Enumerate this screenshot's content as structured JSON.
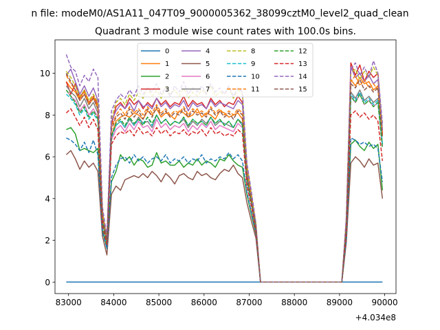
{
  "figure": {
    "suptitle": "n file: modeM0/AS1A11_047T09_9000005362_38099cztM0_level2_quad_clean",
    "offset_text": "+4.034e8"
  },
  "chart_data": {
    "type": "line",
    "title": "Quadrant 3 module wise count rates with 100.0s bins.",
    "xlabel": "",
    "ylabel": "",
    "xlim": [
      82700,
      90250
    ],
    "ylim": [
      -0.55,
      11.6
    ],
    "x_offset": 403400000,
    "x_ticks": [
      83000,
      84000,
      85000,
      86000,
      87000,
      88000,
      89000,
      90000
    ],
    "y_ticks": [
      0,
      2,
      4,
      6,
      8,
      10
    ],
    "grid": false,
    "legend_position": "upper center, 4 columns",
    "x": [
      82950,
      83050,
      83150,
      83250,
      83350,
      83450,
      83550,
      83650,
      83750,
      83850,
      83950,
      84050,
      84150,
      84250,
      84350,
      84450,
      84550,
      84650,
      84750,
      84850,
      84950,
      85050,
      85150,
      85250,
      85350,
      85450,
      85550,
      85650,
      85750,
      85850,
      85950,
      86050,
      86150,
      86250,
      86350,
      86450,
      86550,
      86650,
      86750,
      86850,
      86950,
      87050,
      87150,
      87250,
      87350,
      87450,
      87550,
      87650,
      87750,
      87850,
      87950,
      88050,
      88150,
      88250,
      88350,
      88450,
      88550,
      88650,
      88750,
      88850,
      88950,
      89050,
      89150,
      89250,
      89350,
      89450,
      89550,
      89650,
      89750,
      89850,
      89950
    ],
    "series": [
      {
        "name": "0",
        "color": "#1f77b4",
        "dash": false,
        "values": [
          0,
          0,
          0,
          0,
          0,
          0,
          0,
          0,
          0,
          0,
          0,
          0,
          0,
          0,
          0,
          0,
          0,
          0,
          0,
          0,
          0,
          0,
          0,
          0,
          0,
          0,
          0,
          0,
          0,
          0,
          0,
          0,
          0,
          0,
          0,
          0,
          0,
          0,
          0,
          0,
          0,
          0,
          0,
          0,
          0,
          0,
          0,
          0,
          0,
          0,
          0,
          0,
          0,
          0,
          0,
          0,
          0,
          0,
          0,
          0,
          0,
          0,
          0,
          0,
          0,
          0,
          0,
          0,
          0,
          0,
          0
        ]
      },
      {
        "name": "1",
        "color": "#ff7f0e",
        "dash": false,
        "values": [
          9.6,
          9.3,
          9.1,
          8.7,
          9.0,
          8.5,
          8.8,
          8.3,
          3.0,
          2.0,
          7.0,
          7.7,
          7.9,
          8.0,
          7.9,
          8.1,
          8.0,
          7.8,
          8.2,
          8.0,
          8.3,
          7.9,
          8.1,
          8.0,
          7.8,
          8.2,
          8.1,
          7.9,
          8.0,
          8.3,
          7.9,
          8.1,
          8.0,
          7.8,
          8.2,
          8.1,
          7.9,
          8.0,
          8.1,
          7.8,
          5.0,
          3.8,
          2.5,
          0,
          0,
          0,
          0,
          0,
          0,
          0,
          0,
          0,
          0,
          0,
          0,
          0,
          0,
          0,
          0,
          0,
          0,
          0,
          2.5,
          9.7,
          9.4,
          9.8,
          9.5,
          9.6,
          9.2,
          9.4,
          7.0
        ]
      },
      {
        "name": "2",
        "color": "#2ca02c",
        "dash": false,
        "values": [
          7.3,
          7.4,
          7.1,
          6.3,
          6.4,
          6.3,
          6.2,
          6.4,
          2.5,
          1.6,
          4.8,
          5.3,
          6.1,
          5.8,
          6.0,
          5.6,
          5.9,
          5.8,
          5.5,
          5.6,
          6.2,
          5.7,
          5.8,
          5.6,
          5.6,
          5.8,
          5.5,
          5.7,
          5.6,
          5.9,
          5.6,
          5.8,
          5.7,
          5.5,
          5.9,
          5.8,
          6.1,
          5.8,
          5.6,
          5.5,
          4.2,
          3.2,
          2.3,
          0,
          0,
          0,
          0,
          0,
          0,
          0,
          0,
          0,
          0,
          0,
          0,
          0,
          0,
          0,
          0,
          0,
          0,
          0,
          2.0,
          6.6,
          6.8,
          6.5,
          6.3,
          6.7,
          6.4,
          6.6,
          4.4
        ]
      },
      {
        "name": "3",
        "color": "#d62728",
        "dash": false,
        "values": [
          9.6,
          9.0,
          9.5,
          8.8,
          9.2,
          8.6,
          8.9,
          8.5,
          3.4,
          1.9,
          7.5,
          8.4,
          8.6,
          8.3,
          8.8,
          8.5,
          8.7,
          8.3,
          8.6,
          8.4,
          8.8,
          8.5,
          8.7,
          8.4,
          8.6,
          8.5,
          8.9,
          8.4,
          8.7,
          8.5,
          8.6,
          8.3,
          8.8,
          8.5,
          8.7,
          8.4,
          8.6,
          8.5,
          8.9,
          8.6,
          5.3,
          4.1,
          2.7,
          0,
          0,
          0,
          0,
          0,
          0,
          0,
          0,
          0,
          0,
          0,
          0,
          0,
          0,
          0,
          0,
          0,
          0,
          0,
          2.9,
          10.5,
          9.9,
          10.4,
          9.6,
          10.1,
          9.8,
          10.0,
          7.1
        ]
      },
      {
        "name": "4",
        "color": "#9467bd",
        "dash": false,
        "values": [
          9.9,
          10.2,
          9.6,
          9.0,
          9.4,
          8.9,
          9.3,
          8.7,
          3.3,
          2.1,
          7.7,
          8.2,
          8.5,
          8.3,
          8.6,
          8.2,
          8.7,
          8.4,
          8.5,
          8.3,
          8.8,
          8.4,
          8.6,
          8.3,
          8.5,
          8.4,
          8.7,
          8.2,
          8.6,
          8.4,
          8.5,
          8.3,
          8.7,
          8.4,
          8.6,
          8.5,
          8.4,
          8.3,
          8.7,
          8.5,
          5.2,
          4.0,
          2.6,
          0,
          0,
          0,
          0,
          0,
          0,
          0,
          0,
          0,
          0,
          0,
          0,
          0,
          0,
          0,
          0,
          0,
          0,
          0,
          2.8,
          10.3,
          9.8,
          10.0,
          9.6,
          9.9,
          9.5,
          9.7,
          7.3
        ]
      },
      {
        "name": "5",
        "color": "#8c564b",
        "dash": false,
        "values": [
          6.1,
          6.3,
          5.9,
          5.4,
          5.8,
          5.5,
          5.7,
          5.3,
          2.2,
          1.3,
          4.2,
          4.6,
          4.4,
          4.9,
          5.0,
          5.1,
          5.0,
          5.2,
          5.0,
          5.3,
          5.1,
          4.8,
          5.2,
          5.0,
          4.7,
          5.1,
          5.2,
          5.0,
          4.9,
          5.3,
          5.1,
          5.2,
          5.0,
          4.9,
          5.2,
          5.4,
          5.3,
          5.6,
          5.2,
          5.0,
          3.8,
          2.9,
          2.1,
          0,
          0,
          0,
          0,
          0,
          0,
          0,
          0,
          0,
          0,
          0,
          0,
          0,
          0,
          0,
          0,
          0,
          0,
          0,
          1.9,
          5.7,
          6.0,
          5.8,
          5.5,
          5.9,
          5.6,
          5.7,
          4.0
        ]
      },
      {
        "name": "6",
        "color": "#e377c2",
        "dash": false,
        "values": [
          9.2,
          8.9,
          8.7,
          8.2,
          8.5,
          8.0,
          8.3,
          7.9,
          2.9,
          1.9,
          6.8,
          7.3,
          7.5,
          7.2,
          7.6,
          7.3,
          7.7,
          7.4,
          7.5,
          7.2,
          7.8,
          7.4,
          7.6,
          7.3,
          7.5,
          7.4,
          7.6,
          7.2,
          7.5,
          7.3,
          7.6,
          7.4,
          7.7,
          7.3,
          7.5,
          7.4,
          7.3,
          7.2,
          7.6,
          7.4,
          4.8,
          3.7,
          2.4,
          0,
          0,
          0,
          0,
          0,
          0,
          0,
          0,
          0,
          0,
          0,
          0,
          0,
          0,
          0,
          0,
          0,
          0,
          0,
          2.4,
          8.9,
          8.6,
          9.0,
          8.5,
          8.7,
          8.4,
          8.6,
          6.5
        ]
      },
      {
        "name": "7",
        "color": "#7f7f7f",
        "dash": false,
        "values": [
          9.4,
          9.1,
          8.9,
          8.4,
          8.8,
          8.3,
          8.6,
          8.1,
          3.0,
          2.0,
          7.0,
          7.5,
          7.7,
          7.4,
          7.8,
          7.5,
          7.9,
          7.6,
          7.7,
          7.4,
          8.0,
          7.6,
          7.8,
          7.5,
          7.7,
          7.6,
          7.8,
          7.4,
          7.7,
          7.5,
          7.8,
          7.6,
          7.9,
          7.5,
          7.7,
          7.6,
          7.5,
          7.4,
          7.8,
          7.6,
          4.9,
          3.8,
          2.5,
          0,
          0,
          0,
          0,
          0,
          0,
          0,
          0,
          0,
          0,
          0,
          0,
          0,
          0,
          0,
          0,
          0,
          0,
          0,
          2.5,
          9.1,
          8.8,
          9.2,
          8.7,
          8.9,
          8.6,
          8.8,
          6.6
        ]
      },
      {
        "name": "8",
        "color": "#bcbd22",
        "dash": true,
        "values": [
          10.1,
          9.8,
          9.4,
          8.9,
          9.2,
          8.7,
          9.0,
          8.6,
          3.4,
          2.1,
          7.8,
          8.6,
          8.8,
          8.5,
          9.0,
          8.7,
          9.1,
          8.8,
          9.3,
          8.9,
          9.2,
          8.8,
          9.4,
          9.0,
          9.2,
          8.9,
          9.3,
          8.8,
          9.1,
          8.9,
          9.2,
          9.0,
          9.4,
          8.9,
          9.1,
          9.0,
          9.3,
          8.8,
          9.2,
          9.0,
          5.6,
          4.2,
          2.8,
          0,
          0,
          0,
          0,
          0,
          0,
          0,
          0,
          0,
          0,
          0,
          0,
          0,
          0,
          0,
          0,
          0,
          0,
          0,
          3.0,
          10.0,
          10.2,
          9.7,
          10.1,
          9.8,
          10.3,
          9.9,
          7.5
        ]
      },
      {
        "name": "9",
        "color": "#17becf",
        "dash": true,
        "values": [
          9.0,
          8.8,
          8.5,
          8.0,
          8.3,
          7.8,
          8.1,
          7.7,
          2.9,
          1.8,
          6.9,
          7.5,
          7.7,
          7.4,
          7.9,
          7.5,
          7.8,
          7.6,
          7.9,
          7.5,
          8.0,
          7.6,
          7.8,
          7.5,
          7.7,
          7.6,
          7.9,
          7.5,
          7.8,
          7.6,
          7.7,
          7.5,
          7.9,
          7.6,
          7.8,
          7.5,
          7.7,
          7.4,
          7.8,
          7.5,
          4.9,
          3.8,
          2.5,
          0,
          0,
          0,
          0,
          0,
          0,
          0,
          0,
          0,
          0,
          0,
          0,
          0,
          0,
          0,
          0,
          0,
          0,
          0,
          2.6,
          9.0,
          8.7,
          9.1,
          8.6,
          8.8,
          8.5,
          8.7,
          6.6
        ]
      },
      {
        "name": "10",
        "color": "#1f77b4",
        "dash": true,
        "values": [
          6.9,
          6.8,
          6.6,
          6.3,
          6.7,
          6.2,
          6.8,
          6.1,
          2.4,
          1.6,
          5.0,
          5.6,
          5.9,
          6.0,
          5.7,
          6.1,
          5.8,
          6.0,
          5.7,
          5.9,
          6.0,
          5.8,
          6.1,
          5.7,
          5.9,
          5.8,
          6.0,
          5.7,
          5.9,
          5.8,
          6.1,
          5.7,
          5.9,
          5.8,
          6.0,
          5.9,
          6.2,
          5.9,
          6.1,
          5.8,
          4.3,
          3.3,
          2.3,
          0,
          0,
          0,
          0,
          0,
          0,
          0,
          0,
          0,
          0,
          0,
          0,
          0,
          0,
          0,
          0,
          0,
          0,
          0,
          2.1,
          6.9,
          6.8,
          6.6,
          6.7,
          6.5,
          6.6,
          6.4,
          4.8
        ]
      },
      {
        "name": "11",
        "color": "#ff7f0e",
        "dash": true,
        "values": [
          9.9,
          9.5,
          9.2,
          8.8,
          9.1,
          8.6,
          8.9,
          8.4,
          3.2,
          2.0,
          7.4,
          8.0,
          8.3,
          8.0,
          8.4,
          8.1,
          8.3,
          8.0,
          8.4,
          8.1,
          8.5,
          8.1,
          8.3,
          8.0,
          8.2,
          8.1,
          8.4,
          8.0,
          8.3,
          8.1,
          8.2,
          8.0,
          8.4,
          8.1,
          8.3,
          8.0,
          8.2,
          8.0,
          8.3,
          8.1,
          5.2,
          4.0,
          2.6,
          0,
          0,
          0,
          0,
          0,
          0,
          0,
          0,
          0,
          0,
          0,
          0,
          0,
          0,
          0,
          0,
          0,
          0,
          0,
          2.8,
          9.6,
          9.9,
          9.4,
          9.7,
          9.3,
          9.5,
          9.2,
          7.0
        ]
      },
      {
        "name": "12",
        "color": "#2ca02c",
        "dash": true,
        "values": [
          9.2,
          8.9,
          8.6,
          8.1,
          8.4,
          7.9,
          8.2,
          7.8,
          2.9,
          1.9,
          7.0,
          7.6,
          7.8,
          7.5,
          7.9,
          7.6,
          7.8,
          7.5,
          7.9,
          7.6,
          8.0,
          7.6,
          7.8,
          7.5,
          7.7,
          7.6,
          7.9,
          7.5,
          7.8,
          7.6,
          7.7,
          7.5,
          7.9,
          7.6,
          7.8,
          7.5,
          7.7,
          7.4,
          7.8,
          7.5,
          4.9,
          3.8,
          2.5,
          0,
          0,
          0,
          0,
          0,
          0,
          0,
          0,
          0,
          0,
          0,
          0,
          0,
          0,
          0,
          0,
          0,
          0,
          0,
          2.5,
          8.9,
          8.6,
          9.0,
          8.5,
          8.7,
          8.4,
          8.6,
          6.4
        ]
      },
      {
        "name": "13",
        "color": "#d62728",
        "dash": true,
        "values": [
          8.1,
          8.3,
          7.9,
          7.5,
          7.9,
          7.4,
          7.8,
          7.3,
          2.7,
          1.8,
          6.6,
          7.0,
          7.2,
          7.1,
          7.3,
          7.0,
          7.4,
          7.1,
          7.2,
          7.0,
          7.4,
          7.1,
          7.3,
          7.0,
          7.2,
          7.1,
          7.3,
          7.0,
          7.2,
          7.1,
          7.3,
          7.0,
          7.4,
          7.1,
          7.2,
          7.0,
          7.1,
          7.0,
          7.3,
          7.1,
          4.6,
          3.6,
          2.4,
          0,
          0,
          0,
          0,
          0,
          0,
          0,
          0,
          0,
          0,
          0,
          0,
          0,
          0,
          0,
          0,
          0,
          0,
          0,
          2.4,
          8.0,
          8.2,
          7.9,
          8.1,
          7.8,
          8.0,
          7.7,
          5.8
        ]
      },
      {
        "name": "14",
        "color": "#9467bd",
        "dash": true,
        "values": [
          10.9,
          10.3,
          10.1,
          9.4,
          9.9,
          9.6,
          10.2,
          9.8,
          3.6,
          2.2,
          8.2,
          8.7,
          9.0,
          8.8,
          9.2,
          8.9,
          9.4,
          9.0,
          9.3,
          9.1,
          9.5,
          9.0,
          9.3,
          8.9,
          9.4,
          9.1,
          9.6,
          9.0,
          9.3,
          9.1,
          9.4,
          9.0,
          9.5,
          9.1,
          9.3,
          9.0,
          9.4,
          8.9,
          9.3,
          9.1,
          5.7,
          4.3,
          2.8,
          0,
          0,
          0,
          0,
          0,
          0,
          0,
          0,
          0,
          0,
          0,
          0,
          0,
          0,
          0,
          0,
          0,
          0,
          0,
          3.1,
          10.2,
          10.5,
          9.9,
          10.3,
          9.8,
          10.6,
          10.0,
          7.6
        ]
      },
      {
        "name": "15",
        "color": "#8c564b",
        "dash": true,
        "values": [
          10.0,
          9.6,
          9.2,
          8.7,
          9.0,
          8.5,
          8.8,
          8.3,
          3.1,
          2.0,
          7.3,
          7.9,
          8.1,
          7.8,
          8.3,
          7.9,
          8.2,
          7.8,
          8.3,
          7.9,
          8.4,
          8.0,
          8.2,
          7.9,
          8.1,
          8.0,
          8.3,
          7.9,
          8.2,
          8.0,
          8.1,
          7.9,
          8.3,
          8.0,
          8.2,
          7.9,
          8.1,
          7.8,
          8.2,
          8.0,
          5.1,
          3.9,
          2.6,
          0,
          0,
          0,
          0,
          0,
          0,
          0,
          0,
          0,
          0,
          0,
          0,
          0,
          0,
          0,
          0,
          0,
          0,
          0,
          2.7,
          9.5,
          9.3,
          9.7,
          9.2,
          9.4,
          9.1,
          9.3,
          6.9
        ]
      }
    ]
  }
}
